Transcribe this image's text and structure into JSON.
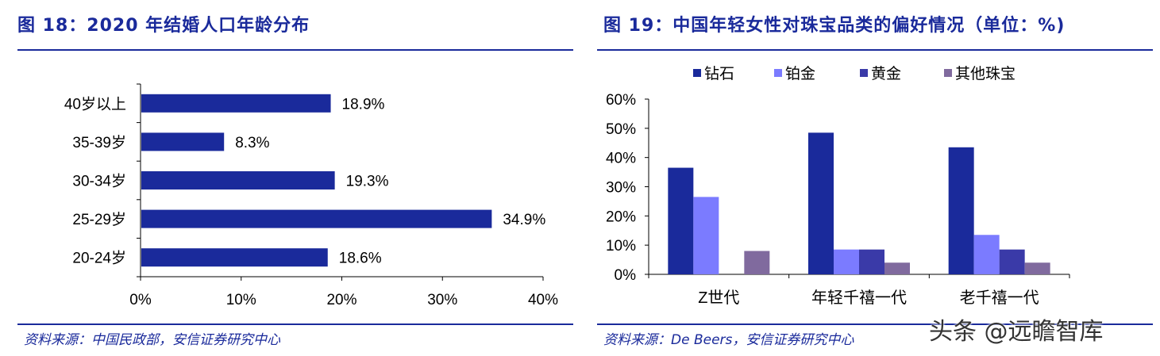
{
  "left": {
    "title": "图 18：2020 年结婚人口年龄分布",
    "source": "资料来源：中国民政部，安信证券研究中心"
  },
  "right": {
    "title": "图 19：中国年轻女性对珠宝品类的偏好情况（单位：%)",
    "source": "资料来源：De Beers，安信证券研究中心"
  },
  "watermark": "头条 @远瞻智库",
  "colors": {
    "title": "#1a2a9b",
    "bar": "#1a2a9b",
    "diamond": "#1a2a9b",
    "platinum": "#7b7bff",
    "gold": "#3a3aa8",
    "other": "#806a9e"
  },
  "chart_data": [
    {
      "type": "bar",
      "orientation": "horizontal",
      "categories": [
        "40岁以上",
        "35-39岁",
        "30-34岁",
        "25-29岁",
        "20-24岁"
      ],
      "values": [
        18.9,
        8.3,
        19.3,
        34.9,
        18.6
      ],
      "value_labels": [
        "18.9%",
        "8.3%",
        "19.3%",
        "34.9%",
        "18.6%"
      ],
      "xlim": [
        0,
        40
      ],
      "xticks": [
        "0%",
        "10%",
        "20%",
        "30%",
        "40%"
      ],
      "grid": false
    },
    {
      "type": "bar",
      "categories": [
        "Z世代",
        "年轻千禧一代",
        "老千禧一代"
      ],
      "series": [
        {
          "name": "钻石",
          "values": [
            36.5,
            48.5,
            43.5
          ]
        },
        {
          "name": "铂金",
          "values": [
            26.5,
            8.5,
            13.5
          ]
        },
        {
          "name": "黄金",
          "values": [
            0,
            8.5,
            8.5
          ]
        },
        {
          "name": "其他珠宝",
          "values": [
            8,
            4,
            4
          ]
        }
      ],
      "ylim": [
        0,
        60
      ],
      "yticks": [
        "0%",
        "10%",
        "20%",
        "30%",
        "40%",
        "50%",
        "60%"
      ],
      "legend_position": "top",
      "grid": false
    }
  ]
}
